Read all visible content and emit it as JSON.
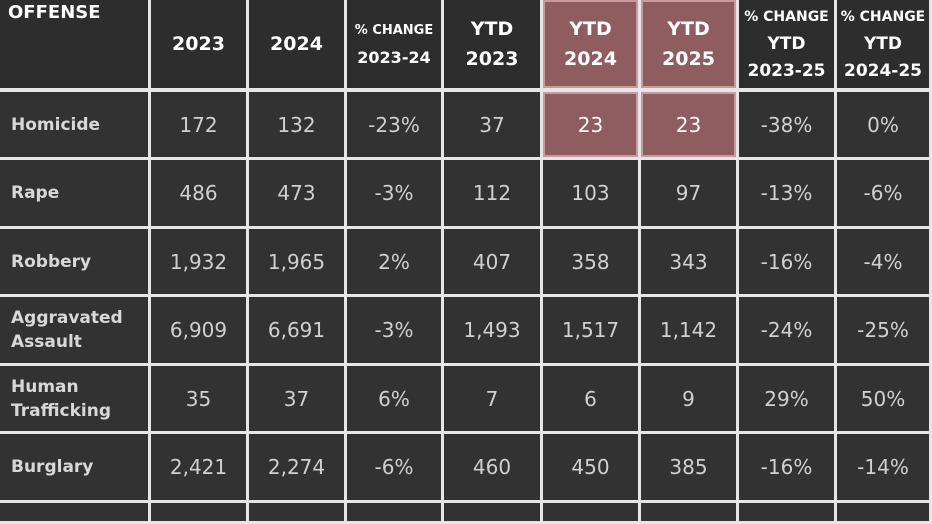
{
  "colors": {
    "background": "#323232",
    "grid": "#e6e6e6",
    "highlight": "#8f5d5f",
    "decrease": "#28b628",
    "increase": "#9c1c24"
  },
  "chart_data": {
    "type": "table",
    "columns": [
      {
        "key": "offense",
        "lines": [
          "OFFENSE"
        ]
      },
      {
        "key": "y2023",
        "lines": [
          "2023"
        ]
      },
      {
        "key": "y2024",
        "lines": [
          "2024"
        ]
      },
      {
        "key": "chg_2023_24",
        "lines": [
          "% CHANGE",
          "2023-24"
        ]
      },
      {
        "key": "ytd2023",
        "lines": [
          "YTD",
          "2023"
        ]
      },
      {
        "key": "ytd2024",
        "lines": [
          "YTD",
          "2024"
        ],
        "highlight": true
      },
      {
        "key": "ytd2025",
        "lines": [
          "YTD",
          "2025"
        ],
        "highlight": true
      },
      {
        "key": "chg_ytd_2023_25",
        "lines": [
          "% CHANGE",
          "YTD",
          "2023-25"
        ]
      },
      {
        "key": "chg_ytd_2024_25",
        "lines": [
          "% CHANGE",
          "YTD",
          "2024-25"
        ]
      }
    ],
    "rows": [
      {
        "offense": [
          "Homicide"
        ],
        "highlight": true,
        "values": [
          "172",
          "132",
          "-23%",
          "37",
          "23",
          "23",
          "-38%",
          "0%"
        ]
      },
      {
        "offense": [
          "Rape"
        ],
        "values": [
          "486",
          "473",
          "-3%",
          "112",
          "103",
          "97",
          "-13%",
          "-6%"
        ]
      },
      {
        "offense": [
          "Robbery"
        ],
        "values": [
          "1,932",
          "1,965",
          "2%",
          "407",
          "358",
          "343",
          "-16%",
          "-4%"
        ]
      },
      {
        "offense": [
          "Aggravated",
          "Assault"
        ],
        "values": [
          "6,909",
          "6,691",
          "-3%",
          "1,493",
          "1,517",
          "1,142",
          "-24%",
          "-25%"
        ]
      },
      {
        "offense": [
          "Human",
          "Trafficking"
        ],
        "values": [
          "35",
          "37",
          "6%",
          "7",
          "6",
          "9",
          "29%",
          "50%"
        ]
      },
      {
        "offense": [
          "Burglary"
        ],
        "values": [
          "2,421",
          "2,274",
          "-6%",
          "460",
          "450",
          "385",
          "-16%",
          "-14%"
        ]
      }
    ]
  }
}
